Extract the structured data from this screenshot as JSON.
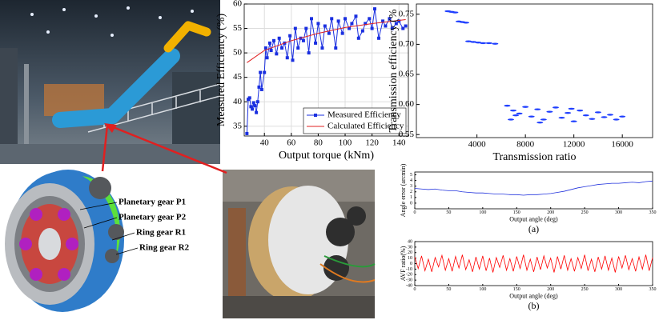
{
  "labels": [
    "Planetary gear P1",
    "Planetary gear P2",
    "Ring gear R1",
    "Ring gear R2"
  ],
  "chart_data": [
    {
      "type": "line",
      "xlabel": "Output torque (kNm)",
      "ylabel": "Measured Efficiency (%)",
      "xlim": [
        25,
        147
      ],
      "ylim": [
        33,
        60
      ],
      "xticks": [
        40,
        60,
        80,
        100,
        120,
        140
      ],
      "yticks": [
        35,
        40,
        45,
        50,
        55,
        60
      ],
      "grid": true,
      "legend": "lower right",
      "series": [
        {
          "name": "Measured Efficiency",
          "color": "#1a2fe0",
          "marker": "square",
          "x": [
            27,
            28,
            29,
            30,
            31,
            32,
            33,
            34,
            35,
            36,
            37,
            38,
            40,
            41,
            42,
            44,
            45,
            47,
            49,
            51,
            53,
            55,
            57,
            59,
            61,
            63,
            65,
            67,
            69,
            71,
            73,
            75,
            78,
            80,
            83,
            85,
            88,
            90,
            93,
            95,
            98,
            100,
            103,
            105,
            108,
            110,
            113,
            115,
            118,
            120,
            122,
            125,
            128,
            130,
            133,
            135,
            138,
            140,
            143,
            145
          ],
          "values": [
            33.5,
            40.5,
            40.8,
            39,
            38.5,
            39.8,
            39.2,
            37.8,
            40,
            43,
            46,
            42.5,
            46,
            51,
            49,
            52,
            50.5,
            52.5,
            49.8,
            53,
            51,
            52,
            49,
            53.5,
            48.5,
            55,
            51,
            53,
            52.5,
            55,
            50,
            57,
            52,
            56,
            51,
            55.5,
            54,
            57,
            51,
            56.5,
            54,
            57,
            55,
            56,
            57.5,
            53,
            54.5,
            56,
            57,
            55,
            59,
            53,
            56.5,
            55.5,
            57,
            55,
            56,
            56.5,
            55,
            55.5
          ]
        },
        {
          "name": "Calculated Efficiency",
          "color": "#e02020",
          "x": [
            27,
            40,
            60,
            80,
            100,
            120,
            145
          ],
          "values": [
            48,
            50.5,
            52.5,
            54,
            55.2,
            56,
            56.8
          ]
        }
      ]
    },
    {
      "type": "scatter",
      "xlabel": "Transmission ratio",
      "ylabel": "Transmission efficiency (%",
      "xlim": [
        -1000,
        18500
      ],
      "ylim": [
        0.545,
        0.767
      ],
      "xticks": [
        4000,
        8000,
        12000,
        16000
      ],
      "yticks": [
        0.55,
        {
          "value": 0.6,
          "label": "0.60"
        },
        0.65,
        {
          "value": 0.7,
          "label": "0.70"
        },
        0.75
      ],
      "color": "#1f3fff",
      "x": [
        1600,
        1900,
        2200,
        2500,
        2800,
        3100,
        3300,
        3700,
        4100,
        4500,
        5000,
        5500,
        6500,
        7000,
        7500,
        8000,
        8500,
        9000,
        9500,
        10000,
        10500,
        11000,
        11500,
        12000,
        12500,
        13000,
        13500,
        14000,
        14500,
        15000,
        15500,
        16000,
        6800,
        9200,
        7200,
        11800
      ],
      "values": [
        0.755,
        0.754,
        0.753,
        0.738,
        0.737,
        0.736,
        0.705,
        0.704,
        0.703,
        0.702,
        0.702,
        0.701,
        0.598,
        0.59,
        0.585,
        0.596,
        0.58,
        0.592,
        0.575,
        0.588,
        0.595,
        0.578,
        0.586,
        0.572,
        0.59,
        0.582,
        0.576,
        0.587,
        0.579,
        0.583,
        0.575,
        0.58,
        0.575,
        0.57,
        0.582,
        0.593
      ]
    },
    {
      "type": "line",
      "xlabel": "Output angle (deg)",
      "ylabel": "Angle error (arcmin)",
      "caption": "(a)",
      "xlim": [
        0,
        350
      ],
      "ylim": [
        -1,
        5.5
      ],
      "xticks": [
        0,
        50,
        100,
        150,
        200,
        250,
        300,
        350
      ],
      "yticks": [
        0,
        1,
        2,
        3,
        4,
        5
      ],
      "color": "#2233dd",
      "x": [
        0,
        10,
        20,
        30,
        40,
        50,
        60,
        70,
        80,
        90,
        100,
        110,
        120,
        130,
        140,
        150,
        160,
        170,
        180,
        190,
        200,
        210,
        220,
        230,
        240,
        250,
        260,
        270,
        280,
        290,
        300,
        310,
        320,
        330,
        340,
        350
      ],
      "values": [
        2.6,
        2.5,
        2.4,
        2.5,
        2.3,
        2.2,
        2.2,
        2.0,
        1.9,
        1.8,
        1.8,
        1.7,
        1.6,
        1.6,
        1.5,
        1.5,
        1.4,
        1.5,
        1.5,
        1.6,
        1.7,
        1.9,
        2.1,
        2.4,
        2.7,
        2.9,
        3.1,
        3.3,
        3.4,
        3.5,
        3.5,
        3.6,
        3.7,
        3.6,
        3.8,
        3.9
      ]
    },
    {
      "type": "line",
      "xlabel": "Output angle (deg)",
      "ylabel": "AVF ratio(%)",
      "caption": "(b)",
      "xlim": [
        0,
        350
      ],
      "ylim": [
        -40,
        40
      ],
      "xticks": [
        0,
        50,
        100,
        150,
        200,
        250,
        300,
        350
      ],
      "yticks": [
        -40,
        -30,
        -20,
        -10,
        0,
        10,
        20,
        30,
        40
      ],
      "color": "#ff0000",
      "x": [
        0,
        5,
        10,
        15,
        20,
        25,
        30,
        35,
        40,
        45,
        50,
        55,
        60,
        65,
        70,
        75,
        80,
        85,
        90,
        95,
        100,
        105,
        110,
        115,
        120,
        125,
        130,
        135,
        140,
        145,
        150,
        155,
        160,
        165,
        170,
        175,
        180,
        185,
        190,
        195,
        200,
        205,
        210,
        215,
        220,
        225,
        230,
        235,
        240,
        245,
        250,
        255,
        260,
        265,
        270,
        275,
        280,
        285,
        290,
        295,
        300,
        305,
        310,
        315,
        320,
        325,
        330,
        335,
        340,
        345,
        350
      ],
      "values": [
        12,
        -9,
        14,
        -13,
        8,
        -15,
        11,
        -6,
        15,
        -12,
        9,
        -14,
        13,
        -8,
        16,
        -11,
        7,
        -15,
        12,
        -10,
        14,
        -13,
        10,
        -16,
        11,
        -7,
        15,
        -12,
        9,
        -14,
        13,
        -9,
        16,
        -12,
        8,
        -15,
        12,
        -11,
        14,
        -8,
        10,
        -16,
        13,
        -10,
        15,
        -12,
        9,
        -14,
        11,
        -9,
        16,
        -13,
        8,
        -15,
        12,
        -10,
        14,
        -12,
        10,
        -16,
        13,
        -8,
        15,
        -11,
        9,
        -14,
        12,
        -10,
        16,
        -13,
        11
      ]
    }
  ]
}
